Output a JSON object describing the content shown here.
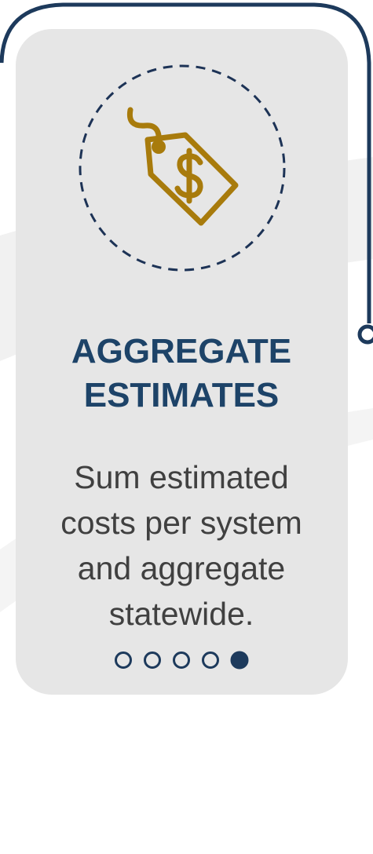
{
  "card": {
    "title_lines": [
      "AGGREGATE",
      "ESTIMATES"
    ],
    "body_lines": [
      "Sum estimated",
      "costs per system",
      "and aggregate",
      "statewide."
    ],
    "pagination": {
      "count": 5,
      "active": 4
    }
  }
}
